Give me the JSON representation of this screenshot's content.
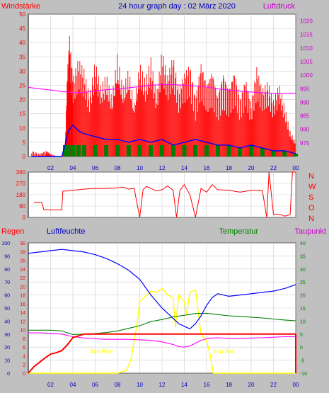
{
  "chart_data": [
    {
      "type": "line",
      "title": "24 hour graph day : 02 März 2020",
      "left_axis_label": "Windstärke",
      "right_axis_label": "Luftdruck",
      "left_ylim": [
        0,
        50
      ],
      "left_yticks": [
        "0",
        "5",
        "10",
        "15",
        "20",
        "25",
        "30",
        "35",
        "40",
        "45",
        "50"
      ],
      "right_ylim": [
        970,
        1022.5
      ],
      "right_yticks": [
        "975",
        "980",
        "985",
        "990",
        "995",
        "1000",
        "1005",
        "1010",
        "1015",
        "1020"
      ],
      "xlim": [
        0,
        24
      ],
      "xticks": [
        "02",
        "04",
        "06",
        "08",
        "10",
        "12",
        "14",
        "16",
        "18",
        "20",
        "22",
        "00"
      ],
      "grid": true,
      "series": [
        {
          "role": "gust",
          "color": "#ff0000",
          "x": [
            0.3,
            1.0,
            1.6,
            2.0,
            2.6,
            3.0,
            3.3,
            3.5,
            3.7,
            4.0,
            4.5,
            5.0,
            5.5,
            6.0,
            6.5,
            7.0,
            7.5,
            8.0,
            8.5,
            9.0,
            9.5,
            10.0,
            10.5,
            11.0,
            11.5,
            12.0,
            12.5,
            13.0,
            13.5,
            14.0,
            14.5,
            15.0,
            15.5,
            16.0,
            16.5,
            17.0,
            17.5,
            18.0,
            18.5,
            19.0,
            19.5,
            20.0,
            20.5,
            21.0,
            21.5,
            22.0,
            22.5,
            23.0,
            23.5,
            24.0
          ],
          "y": [
            2,
            1,
            2,
            1,
            0,
            0,
            3,
            30,
            43,
            28,
            35,
            31,
            22,
            34,
            25,
            29,
            21,
            36,
            24,
            31,
            19,
            33,
            27,
            35,
            22,
            38,
            29,
            36,
            24,
            30,
            33,
            21,
            34,
            26,
            31,
            22,
            30,
            24,
            31,
            21,
            28,
            19,
            32,
            24,
            27,
            20,
            26,
            18,
            9,
            5
          ]
        },
        {
          "role": "mean",
          "color": "#0000ff",
          "x": [
            0.3,
            1.0,
            2.0,
            3.0,
            3.3,
            3.6,
            4.0,
            4.5,
            5.0,
            6.0,
            7.0,
            8.0,
            9.0,
            10.0,
            11.0,
            12.0,
            13.0,
            14.0,
            15.0,
            16.0,
            17.0,
            18.0,
            19.0,
            20.0,
            21.0,
            22.0,
            23.0,
            24.0
          ],
          "y": [
            0,
            0,
            0,
            0,
            4,
            9,
            11,
            9,
            8,
            7,
            6,
            6,
            5,
            6,
            5,
            6,
            4,
            5,
            6,
            5,
            4,
            4,
            3,
            4,
            3,
            2,
            2,
            1
          ]
        },
        {
          "role": "pressure",
          "color": "#ff00ff",
          "x": [
            0,
            1,
            2,
            3,
            4,
            5,
            6,
            7,
            8,
            9,
            10,
            11,
            12,
            13,
            14,
            15,
            16,
            17,
            18,
            19,
            20,
            21,
            22,
            23,
            24
          ],
          "y": [
            995.5,
            995.0,
            994.5,
            994.0,
            993.5,
            993.6,
            994.2,
            994.6,
            995.0,
            995.3,
            995.8,
            996.3,
            996.5,
            996.5,
            996.3,
            996.0,
            995.6,
            995.0,
            994.5,
            994.1,
            993.8,
            993.5,
            993.3,
            993.2,
            993.3
          ]
        }
      ]
    },
    {
      "type": "line",
      "ylim": [
        0,
        360
      ],
      "yticks": [
        "0",
        "90",
        "180",
        "270",
        "360"
      ],
      "compass_labels": [
        "N",
        "W",
        "S",
        "O",
        "N"
      ],
      "xlim": [
        0,
        24
      ],
      "series": [
        {
          "role": "wind-direction",
          "color": "#ff0000",
          "x": [
            0.5,
            1.2,
            1.4,
            2.0,
            3.0,
            3.1,
            3.5,
            4.0,
            5.0,
            6.0,
            7.0,
            8.0,
            8.5,
            9.0,
            9.5,
            10.0,
            10.3,
            10.6,
            11.0,
            11.5,
            12.0,
            12.5,
            13.0,
            13.3,
            13.6,
            14.0,
            14.5,
            15.0,
            15.5,
            16.0,
            16.5,
            17.0,
            18.0,
            19.0,
            20.0,
            21.0,
            21.4,
            21.6,
            22.0,
            22.6,
            23.0,
            23.5,
            23.7,
            24.0
          ],
          "y": [
            120,
            120,
            60,
            60,
            60,
            210,
            210,
            215,
            225,
            230,
            230,
            235,
            240,
            225,
            230,
            0,
            220,
            245,
            230,
            210,
            220,
            250,
            215,
            0,
            215,
            260,
            180,
            0,
            230,
            200,
            260,
            220,
            215,
            200,
            215,
            215,
            0,
            360,
            25,
            25,
            10,
            20,
            360,
            360
          ]
        }
      ]
    },
    {
      "type": "line",
      "labels": {
        "rain": "Regen",
        "humidity": "Luftfeuchte",
        "temperature": "Temperatur",
        "dewpoint": "Taupunkt"
      },
      "axis_humidity_ticks": [
        "0",
        "10",
        "20",
        "30",
        "40",
        "50",
        "60",
        "70",
        "80",
        "90",
        "100"
      ],
      "axis_rain_ticks": [
        "0",
        "2",
        "4",
        "6",
        "8",
        "10",
        "12",
        "14",
        "16",
        "18",
        "20",
        "22",
        "24",
        "26",
        "28",
        "30"
      ],
      "axis_temperature_ticks": [
        "-10",
        "-5",
        "0",
        "5",
        "10",
        "15",
        "20",
        "25",
        "30",
        "35",
        "40"
      ],
      "xticks": [
        "02",
        "04",
        "06",
        "08",
        "10",
        "12",
        "14",
        "16",
        "18",
        "20",
        "22",
        "00"
      ],
      "annotations": [
        "Sun Rise",
        "Sun Set"
      ],
      "xlim": [
        0,
        24
      ],
      "series": [
        {
          "role": "humidity",
          "color": "#0000ff",
          "x": [
            0,
            1,
            2,
            3,
            4,
            5,
            6,
            7,
            8,
            9,
            10,
            11,
            12,
            13,
            13.5,
            14,
            14.5,
            15,
            15.5,
            16,
            16.5,
            17,
            18,
            19,
            20,
            21,
            22,
            23,
            24
          ],
          "y": [
            92,
            93,
            94,
            95,
            94,
            93,
            91,
            88,
            84,
            79,
            72,
            60,
            50,
            42,
            38,
            36,
            34,
            38,
            44,
            52,
            58,
            61,
            59,
            60,
            61,
            62,
            63,
            65,
            68
          ]
        },
        {
          "role": "temperature",
          "color": "#008000",
          "x": [
            0,
            1,
            2,
            3,
            4,
            5,
            6,
            7,
            8,
            9,
            10,
            11,
            12,
            13,
            14,
            15,
            16,
            17,
            18,
            19,
            20,
            21,
            22,
            23,
            24
          ],
          "y": [
            6.5,
            6.5,
            6.5,
            6.2,
            4.8,
            5.0,
            5.2,
            5.6,
            6.2,
            7.2,
            8.2,
            9.8,
            10.6,
            11.6,
            12.2,
            12.9,
            13.0,
            12.5,
            12.0,
            11.8,
            11.5,
            11.2,
            10.8,
            10.4,
            10.1
          ]
        },
        {
          "role": "dewpoint",
          "color": "#ff00ff",
          "x": [
            0,
            1,
            2,
            3,
            4,
            5,
            6,
            7,
            8,
            9,
            10,
            11,
            12,
            13,
            13.5,
            14,
            14.5,
            15,
            15.5,
            16,
            16.5,
            17,
            18,
            19,
            20,
            21,
            22,
            23,
            24
          ],
          "y": [
            5.5,
            5.5,
            5.3,
            5.0,
            4.0,
            3.5,
            3.2,
            3.0,
            3.0,
            3.0,
            2.8,
            2.6,
            2.0,
            1.0,
            0.2,
            0.0,
            0.5,
            1.5,
            2.6,
            3.2,
            3.5,
            3.6,
            3.4,
            3.3,
            3.5,
            3.6,
            3.8,
            4.0,
            4.0
          ]
        },
        {
          "role": "rain",
          "color": "#ff0000",
          "x": [
            0,
            0.5,
            1,
            1.5,
            2,
            2.5,
            3,
            3.5,
            4,
            4.5,
            5,
            24
          ],
          "y": [
            0,
            1.5,
            2.5,
            3.5,
            4.4,
            4.7,
            5.2,
            6.5,
            8.2,
            8.6,
            9.0,
            9.0
          ]
        },
        {
          "role": "solar",
          "color": "#ffff00",
          "x": [
            0,
            6,
            8,
            8.8,
            9.2,
            9.5,
            9.8,
            10,
            11,
            11.5,
            12,
            12.5,
            13,
            13.2,
            13.5,
            14,
            14.2,
            14.5,
            15,
            15.5,
            16,
            16.3,
            16.6,
            24
          ],
          "y": [
            0,
            0,
            0,
            2,
            10,
            25,
            40,
            55,
            63,
            62,
            65,
            60,
            58,
            35,
            60,
            55,
            45,
            62,
            64,
            30,
            25,
            15,
            0,
            0
          ]
        }
      ]
    }
  ]
}
